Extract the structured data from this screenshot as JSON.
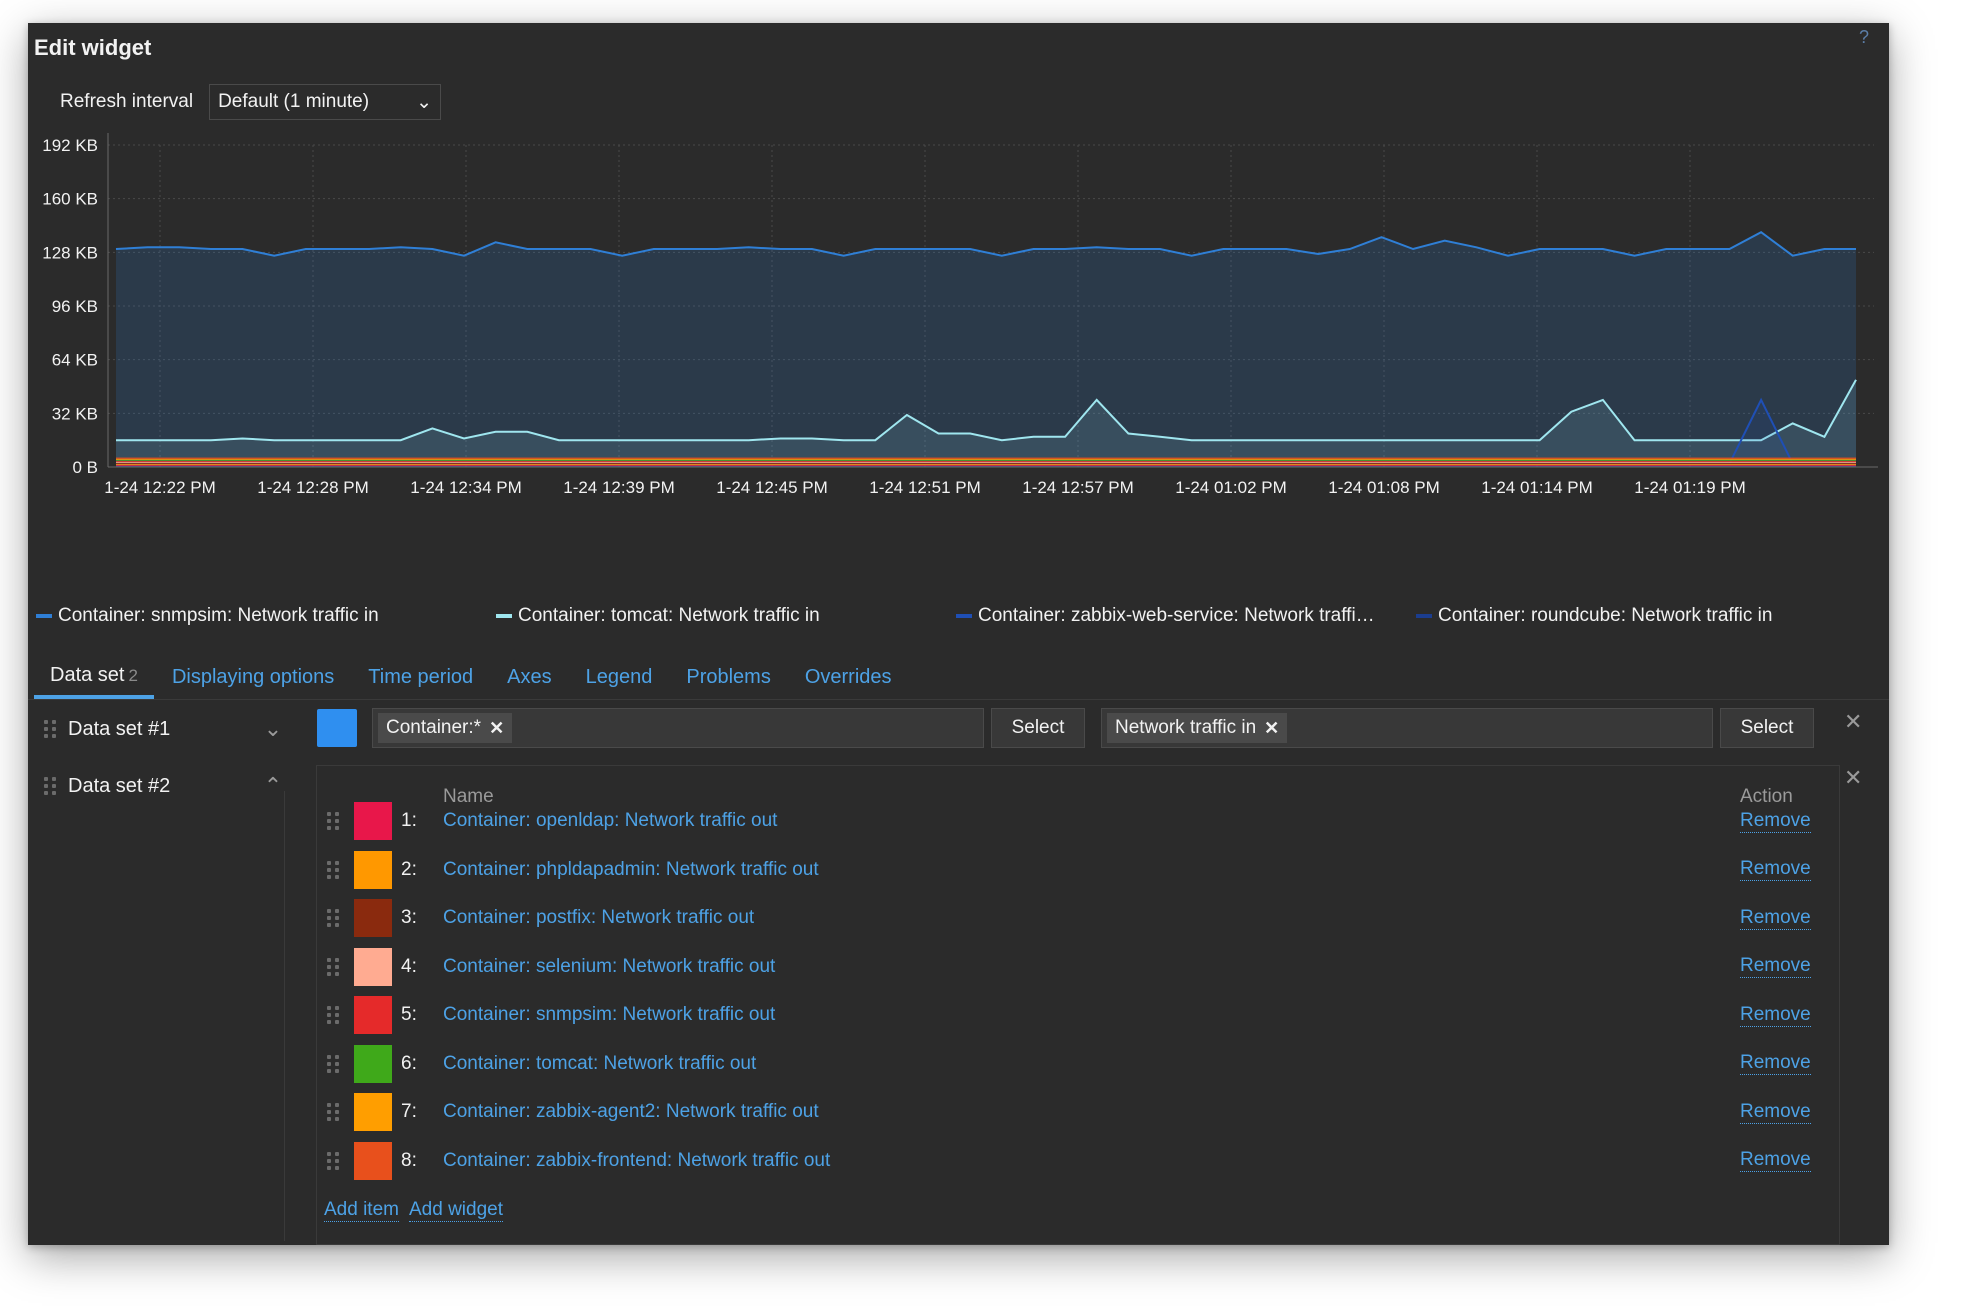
{
  "dialog": {
    "title": "Edit widget",
    "help": "?"
  },
  "refresh": {
    "label": "Refresh interval",
    "value": "Default (1 minute)"
  },
  "chart_data": {
    "type": "area",
    "y_ticks": [
      "0 B",
      "32 KB",
      "64 KB",
      "96 KB",
      "128 KB",
      "160 KB",
      "192 KB"
    ],
    "ylim": [
      0,
      192
    ],
    "x_ticks": [
      "1-24 12:22 PM",
      "1-24 12:28 PM",
      "1-24 12:34 PM",
      "1-24 12:39 PM",
      "1-24 12:45 PM",
      "1-24 12:51 PM",
      "1-24 12:57 PM",
      "1-24 01:02 PM",
      "1-24 01:08 PM",
      "1-24 01:14 PM",
      "1-24 01:19 PM"
    ],
    "grid": true,
    "series": [
      {
        "name": "Container: snmpsim: Network traffic in",
        "color": "#2f7fd6",
        "values": [
          130,
          131,
          131,
          130,
          130,
          126,
          130,
          130,
          130,
          131,
          130,
          126,
          134,
          130,
          130,
          130,
          126,
          130,
          130,
          130,
          131,
          130,
          130,
          126,
          130,
          130,
          130,
          130,
          126,
          130,
          130,
          131,
          130,
          130,
          126,
          130,
          130,
          130,
          127,
          130,
          137,
          130,
          135,
          131,
          126,
          130,
          130,
          130,
          126,
          130,
          130,
          130,
          140,
          126,
          130,
          130
        ]
      },
      {
        "name": "Container: tomcat: Network traffic in",
        "color": "#9fe6ef",
        "values": [
          16,
          16,
          16,
          16,
          17,
          16,
          16,
          16,
          16,
          16,
          23,
          17,
          21,
          21,
          16,
          16,
          16,
          16,
          16,
          16,
          16,
          17,
          17,
          16,
          16,
          31,
          20,
          20,
          16,
          18,
          18,
          40,
          20,
          18,
          16,
          16,
          16,
          16,
          16,
          16,
          16,
          16,
          16,
          16,
          16,
          16,
          33,
          40,
          16,
          16,
          16,
          16,
          16,
          26,
          18,
          52
        ]
      },
      {
        "name": "Container: zabbix-web-service: Network traffi…",
        "color": "#1f4fb5",
        "values": [
          2,
          2,
          2,
          2,
          2,
          2,
          2,
          2,
          2,
          2,
          2,
          2,
          2,
          2,
          2,
          2,
          2,
          2,
          2,
          2,
          2,
          2,
          2,
          2,
          2,
          2,
          2,
          2,
          2,
          2,
          2,
          2,
          2,
          2,
          2,
          2,
          2,
          2,
          2,
          2,
          2,
          2,
          2,
          2,
          2,
          2,
          2,
          2,
          2,
          2,
          2,
          2,
          40,
          2,
          2,
          2
        ]
      },
      {
        "name": "Container: roundcube: Network traffic in",
        "color": "#1b3d8f",
        "values": [
          4,
          4,
          4,
          4,
          4,
          4,
          4,
          4,
          4,
          4,
          4,
          4,
          4,
          4,
          4,
          4,
          4,
          4,
          4,
          4,
          4,
          4,
          4,
          4,
          4,
          4,
          4,
          4,
          4,
          4,
          4,
          4,
          4,
          4,
          4,
          4,
          4,
          4,
          4,
          4,
          4,
          4,
          4,
          4,
          4,
          4,
          4,
          4,
          4,
          4,
          4,
          4,
          4,
          4,
          4,
          4
        ]
      }
    ]
  },
  "tabs": [
    {
      "label": "Data set",
      "count": "2"
    },
    {
      "label": "Displaying options"
    },
    {
      "label": "Time period"
    },
    {
      "label": "Axes"
    },
    {
      "label": "Legend"
    },
    {
      "label": "Problems"
    },
    {
      "label": "Overrides"
    }
  ],
  "datasets": [
    {
      "label": "Data set #1",
      "chevron": "down",
      "color": "#2f8ff0",
      "host_pattern": "Container:*",
      "item_pattern": "Network traffic in",
      "select_label": "Select"
    },
    {
      "label": "Data set #2",
      "chevron": "up"
    }
  ],
  "items_table": {
    "headers": {
      "name": "Name",
      "action": "Action"
    },
    "rows": [
      {
        "num": "1:",
        "name": "Container: openldap: Network traffic out",
        "color": "#e8174a",
        "action": "Remove"
      },
      {
        "num": "2:",
        "name": "Container: phpldapadmin: Network traffic out",
        "color": "#ff9800",
        "action": "Remove"
      },
      {
        "num": "3:",
        "name": "Container: postfix: Network traffic out",
        "color": "#8a2a0e",
        "action": "Remove"
      },
      {
        "num": "4:",
        "name": "Container: selenium: Network traffic out",
        "color": "#ffab91",
        "action": "Remove"
      },
      {
        "num": "5:",
        "name": "Container: snmpsim: Network traffic out",
        "color": "#e52a2a",
        "action": "Remove"
      },
      {
        "num": "6:",
        "name": "Container: tomcat: Network traffic out",
        "color": "#3fa91a",
        "action": "Remove"
      },
      {
        "num": "7:",
        "name": "Container: zabbix-agent2: Network traffic out",
        "color": "#ff9e00",
        "action": "Remove"
      },
      {
        "num": "8:",
        "name": "Container: zabbix-frontend: Network traffic out",
        "color": "#e8501c",
        "action": "Remove"
      }
    ],
    "add_item": "Add item",
    "add_widget": "Add widget"
  }
}
